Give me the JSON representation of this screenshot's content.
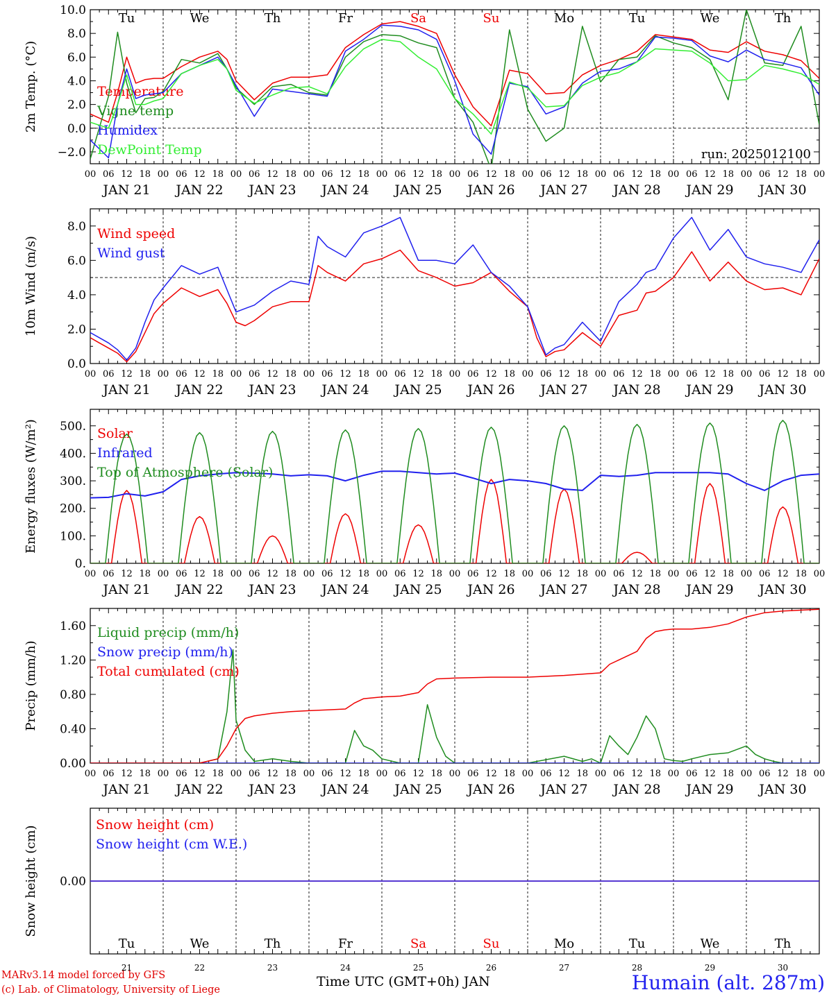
{
  "run_label": "run: 2025012100",
  "x_axis": {
    "hour_labels": [
      "00",
      "06",
      "12",
      "18"
    ],
    "end_label": "00",
    "date_labels": [
      "JAN 21",
      "JAN 22",
      "JAN 23",
      "JAN 24",
      "JAN 25",
      "JAN 26",
      "JAN 27",
      "JAN 28",
      "JAN 29",
      "JAN 30"
    ],
    "weekdays": [
      "Tu",
      "We",
      "Th",
      "Fr",
      "Sa",
      "Su",
      "Mo",
      "Tu",
      "We",
      "Th"
    ],
    "weekend_index": [
      4,
      5
    ],
    "day_numbers": [
      "21",
      "22",
      "23",
      "24",
      "25",
      "26",
      "27",
      "28",
      "29",
      "30"
    ],
    "title": "Time UTC (GMT+0h)",
    "month": "JAN"
  },
  "footer": {
    "credit_line1": "MARv3.14 model forced by GFS",
    "credit_line2": "(c) Lab. of Climatology, University of Liege",
    "station": "Humain (alt. 287m)"
  },
  "colors": {
    "red": "#ee0000",
    "dark_green": "#1f8c1f",
    "blue": "#2020ee",
    "light_green": "#33ee33",
    "weekend": "#ee0000"
  },
  "chart_data": [
    {
      "id": "temperature",
      "type": "line",
      "ylabel": "2m Temp. (°C)",
      "ylim": [
        -3,
        10
      ],
      "y_ticks": [
        -2,
        0,
        2,
        4,
        6,
        8,
        10
      ],
      "y_tick_labels": [
        "−2.0",
        "0.0",
        "2.0",
        "4.0",
        "6.0",
        "8.0",
        "10.0"
      ],
      "zero_line": 0,
      "x_unit": "hours since JAN 21 00 UTC",
      "series": [
        {
          "name": "Temperature",
          "color": "red",
          "x": [
            0,
            6,
            9,
            12,
            15,
            18,
            21,
            24,
            30,
            36,
            42,
            45,
            48,
            54,
            60,
            66,
            72,
            78,
            84,
            90,
            96,
            102,
            108,
            114,
            120,
            126,
            132,
            138,
            144,
            150,
            156,
            162,
            168,
            174,
            180,
            186,
            192,
            198,
            204,
            210,
            216,
            222,
            228,
            234,
            240
          ],
          "y": [
            1.2,
            0.5,
            3.0,
            6.0,
            3.8,
            4.1,
            4.2,
            4.2,
            5.2,
            6.0,
            6.5,
            5.8,
            4.0,
            2.4,
            3.8,
            4.3,
            4.3,
            4.5,
            6.8,
            7.9,
            8.8,
            9.0,
            8.6,
            8.0,
            4.5,
            1.8,
            0.2,
            4.9,
            4.6,
            2.9,
            3.0,
            4.5,
            5.3,
            5.8,
            6.5,
            7.9,
            7.7,
            7.5,
            6.6,
            6.4,
            7.3,
            6.5,
            6.2,
            5.7,
            4.2
          ]
        },
        {
          "name": "Vigne temp",
          "color": "dark_green",
          "x": [
            0,
            6,
            9,
            12,
            15,
            18,
            21,
            24,
            30,
            36,
            42,
            45,
            48,
            54,
            60,
            66,
            72,
            78,
            84,
            90,
            96,
            102,
            108,
            114,
            120,
            126,
            132,
            138,
            144,
            150,
            156,
            162,
            168,
            174,
            180,
            186,
            192,
            198,
            204,
            210,
            216,
            222,
            228,
            234,
            240
          ],
          "y": [
            -2.6,
            2.7,
            8.1,
            3.8,
            1.3,
            2.5,
            2.6,
            3.1,
            5.8,
            5.5,
            6.3,
            5.0,
            3.4,
            2.0,
            3.5,
            3.7,
            3.0,
            2.8,
            6.0,
            7.3,
            7.9,
            7.8,
            7.2,
            6.8,
            2.5,
            0.5,
            -3.5,
            8.3,
            1.6,
            -1.1,
            0.0,
            8.6,
            3.9,
            5.8,
            6.0,
            7.8,
            7.2,
            6.8,
            5.8,
            2.4,
            10.0,
            5.5,
            5.3,
            8.6,
            0.3
          ]
        },
        {
          "name": "Humidex",
          "color": "blue",
          "x": [
            0,
            6,
            9,
            12,
            15,
            18,
            21,
            24,
            30,
            36,
            42,
            45,
            48,
            54,
            60,
            66,
            72,
            78,
            84,
            90,
            96,
            102,
            108,
            114,
            120,
            126,
            132,
            138,
            144,
            150,
            156,
            162,
            168,
            174,
            180,
            186,
            192,
            198,
            204,
            210,
            216,
            222,
            228,
            234,
            240
          ],
          "y": [
            -1.0,
            -2.5,
            2.0,
            5.0,
            2.5,
            2.8,
            2.9,
            3.0,
            4.6,
            5.3,
            6.0,
            5.0,
            3.6,
            1.0,
            3.3,
            3.1,
            2.9,
            2.7,
            6.5,
            7.5,
            8.7,
            8.6,
            8.3,
            7.5,
            4.0,
            -0.5,
            -2.2,
            3.8,
            3.5,
            1.2,
            1.8,
            3.8,
            4.8,
            5.0,
            5.6,
            7.7,
            7.6,
            7.4,
            6.1,
            5.6,
            6.6,
            5.8,
            5.5,
            5.1,
            2.8
          ]
        },
        {
          "name": "DewPoint Temp",
          "color": "light_green",
          "x": [
            0,
            6,
            9,
            12,
            15,
            18,
            21,
            24,
            30,
            36,
            42,
            45,
            48,
            54,
            60,
            66,
            72,
            78,
            84,
            90,
            96,
            102,
            108,
            114,
            120,
            126,
            132,
            138,
            144,
            150,
            156,
            162,
            168,
            174,
            180,
            186,
            192,
            198,
            204,
            210,
            216,
            222,
            228,
            234,
            240
          ],
          "y": [
            0.5,
            0.0,
            2.0,
            4.5,
            2.0,
            2.0,
            2.3,
            2.5,
            4.6,
            5.3,
            5.8,
            5.0,
            3.2,
            2.1,
            2.8,
            3.4,
            3.5,
            2.9,
            5.2,
            6.7,
            7.5,
            7.3,
            6.0,
            5.0,
            2.5,
            1.2,
            -0.5,
            3.9,
            3.4,
            1.8,
            1.9,
            3.6,
            4.3,
            4.7,
            5.6,
            6.7,
            6.6,
            6.5,
            5.5,
            4.0,
            4.1,
            5.3,
            5.0,
            4.6,
            3.7
          ]
        }
      ]
    },
    {
      "id": "wind",
      "type": "line",
      "ylabel": "10m Wind (m/s)",
      "ylim": [
        0,
        9
      ],
      "y_ticks": [
        0,
        2,
        4,
        6,
        8
      ],
      "y_tick_labels": [
        "0.0",
        "2.0",
        "4.0",
        "6.0",
        "8.0"
      ],
      "ref_line": 5,
      "x_unit": "hours since JAN 21 00 UTC",
      "series": [
        {
          "name": "Wind speed",
          "color": "red",
          "x": [
            0,
            3,
            6,
            9,
            12,
            15,
            18,
            21,
            24,
            30,
            36,
            42,
            45,
            48,
            51,
            54,
            60,
            66,
            72,
            75,
            78,
            84,
            90,
            96,
            102,
            108,
            114,
            120,
            126,
            132,
            138,
            144,
            147,
            150,
            153,
            156,
            162,
            168,
            174,
            180,
            183,
            186,
            192,
            198,
            204,
            210,
            216,
            222,
            228,
            234,
            240
          ],
          "y": [
            1.5,
            1.2,
            0.9,
            0.6,
            0.1,
            0.7,
            1.8,
            2.9,
            3.5,
            4.4,
            3.9,
            4.3,
            3.5,
            2.4,
            2.2,
            2.5,
            3.3,
            3.6,
            3.6,
            5.7,
            5.3,
            4.8,
            5.8,
            6.1,
            6.6,
            5.4,
            5.0,
            4.5,
            4.7,
            5.3,
            4.2,
            3.3,
            1.5,
            0.4,
            0.7,
            0.8,
            1.8,
            1.0,
            2.8,
            3.1,
            4.1,
            4.2,
            5.0,
            6.5,
            4.8,
            5.9,
            4.8,
            4.3,
            4.4,
            4.0,
            6.1
          ]
        },
        {
          "name": "Wind gust",
          "color": "blue",
          "x": [
            0,
            3,
            6,
            9,
            12,
            15,
            18,
            21,
            24,
            30,
            36,
            42,
            45,
            48,
            51,
            54,
            60,
            66,
            72,
            75,
            78,
            84,
            90,
            96,
            102,
            108,
            114,
            120,
            126,
            132,
            138,
            144,
            147,
            150,
            153,
            156,
            162,
            168,
            174,
            180,
            183,
            186,
            192,
            198,
            204,
            210,
            216,
            222,
            228,
            234,
            240
          ],
          "y": [
            1.8,
            1.5,
            1.2,
            0.8,
            0.2,
            0.9,
            2.4,
            3.7,
            4.4,
            5.7,
            5.2,
            5.6,
            4.3,
            3.0,
            3.2,
            3.4,
            4.2,
            4.8,
            4.6,
            7.4,
            6.8,
            6.2,
            7.6,
            8.0,
            8.5,
            6.0,
            6.0,
            5.8,
            6.9,
            5.3,
            4.5,
            3.3,
            1.9,
            0.5,
            0.9,
            1.1,
            2.4,
            1.3,
            3.6,
            4.6,
            5.3,
            5.5,
            7.3,
            8.5,
            6.6,
            7.8,
            6.2,
            5.8,
            5.6,
            5.3,
            7.2
          ]
        }
      ]
    },
    {
      "id": "energy",
      "type": "line",
      "ylabel": "Energy fluxes (W/m²)",
      "ylim": [
        0,
        560
      ],
      "y_ticks": [
        0,
        100,
        200,
        300,
        400,
        500
      ],
      "y_tick_labels": [
        "0.",
        "100.",
        "200.",
        "300.",
        "400.",
        "500."
      ],
      "x_unit": "hours since JAN 21 00 UTC",
      "series": [
        {
          "name": "Solar",
          "color": "red",
          "peaks_hour_of_day": 12,
          "daily_peak": [
            265,
            170,
            100,
            180,
            140,
            305,
            270,
            40,
            290,
            205
          ]
        },
        {
          "name": "Infrared",
          "color": "blue",
          "x": [
            0,
            6,
            12,
            18,
            24,
            30,
            36,
            42,
            48,
            54,
            60,
            66,
            72,
            78,
            84,
            90,
            96,
            102,
            108,
            114,
            120,
            126,
            132,
            138,
            144,
            150,
            156,
            162,
            168,
            174,
            180,
            186,
            192,
            198,
            204,
            210,
            216,
            222,
            228,
            234,
            240
          ],
          "y": [
            238,
            240,
            253,
            245,
            260,
            305,
            318,
            325,
            330,
            328,
            325,
            318,
            322,
            318,
            300,
            320,
            335,
            335,
            330,
            325,
            328,
            310,
            290,
            305,
            300,
            290,
            270,
            265,
            320,
            316,
            320,
            330,
            330,
            330,
            330,
            325,
            290,
            265,
            300,
            320,
            325
          ]
        },
        {
          "name": "Top of Atmosphere (Solar)",
          "color": "dark_green",
          "peaks_hour_of_day": 12,
          "daily_peak": [
            470,
            475,
            480,
            485,
            490,
            495,
            500,
            505,
            510,
            520
          ]
        }
      ]
    },
    {
      "id": "precip",
      "type": "line",
      "ylabel": "Precip (mm/h)",
      "ylim": [
        0,
        1.8
      ],
      "y_ticks": [
        0,
        0.4,
        0.8,
        1.2,
        1.6
      ],
      "y_tick_labels": [
        "0.00",
        "0.40",
        "0.80",
        "1.20",
        "1.60"
      ],
      "x_unit": "hours since JAN 21 00 UTC",
      "series": [
        {
          "name": "Liquid precip (mm/h)",
          "color": "dark_green",
          "x": [
            0,
            36,
            42,
            45,
            47,
            48,
            51,
            54,
            60,
            66,
            72,
            84,
            87,
            90,
            93,
            96,
            102,
            108,
            111,
            114,
            117,
            120,
            144,
            156,
            162,
            165,
            168,
            171,
            174,
            177,
            180,
            183,
            186,
            189,
            192,
            195,
            198,
            204,
            210,
            216,
            219,
            222,
            225,
            228,
            240
          ],
          "y": [
            0,
            0,
            0.05,
            0.6,
            1.32,
            0.5,
            0.15,
            0.02,
            0.05,
            0.02,
            0,
            0,
            0.38,
            0.2,
            0.15,
            0.05,
            0,
            0,
            0.68,
            0.3,
            0.08,
            0,
            0,
            0.08,
            0.02,
            0.05,
            0,
            0.32,
            0.2,
            0.1,
            0.3,
            0.55,
            0.4,
            0.05,
            0.03,
            0.02,
            0.05,
            0.1,
            0.12,
            0.2,
            0.1,
            0.05,
            0.02,
            0,
            0
          ]
        },
        {
          "name": "Snow precip (mm/h)",
          "color": "blue",
          "x": [
            0,
            240
          ],
          "y": [
            0,
            0
          ]
        },
        {
          "name": "Total cumulated (cm)",
          "color": "red",
          "x": [
            0,
            36,
            42,
            45,
            48,
            51,
            54,
            60,
            66,
            72,
            78,
            84,
            87,
            90,
            96,
            102,
            108,
            111,
            114,
            120,
            132,
            144,
            156,
            168,
            171,
            174,
            180,
            183,
            186,
            189,
            192,
            198,
            204,
            210,
            216,
            222,
            228,
            234,
            240
          ],
          "y": [
            0,
            0,
            0.05,
            0.2,
            0.4,
            0.52,
            0.55,
            0.58,
            0.6,
            0.61,
            0.62,
            0.63,
            0.7,
            0.75,
            0.77,
            0.78,
            0.82,
            0.92,
            0.98,
            0.99,
            1.0,
            1.0,
            1.02,
            1.05,
            1.15,
            1.2,
            1.3,
            1.45,
            1.53,
            1.55,
            1.56,
            1.56,
            1.58,
            1.62,
            1.7,
            1.75,
            1.77,
            1.78,
            1.79
          ]
        }
      ]
    },
    {
      "id": "snow",
      "type": "line",
      "ylabel": "Snow height (cm)",
      "ylim": [
        -1,
        1
      ],
      "y_ticks": [
        0
      ],
      "y_tick_labels": [
        "0.00"
      ],
      "x_unit": "hours since JAN 21 00 UTC",
      "series": [
        {
          "name": "Snow height (cm)",
          "color": "red",
          "x": [
            0,
            240
          ],
          "y": [
            0,
            0
          ]
        },
        {
          "name": "Snow height (cm W.E.)",
          "color": "blue",
          "x": [
            0,
            240
          ],
          "y": [
            0,
            0
          ]
        }
      ]
    }
  ]
}
